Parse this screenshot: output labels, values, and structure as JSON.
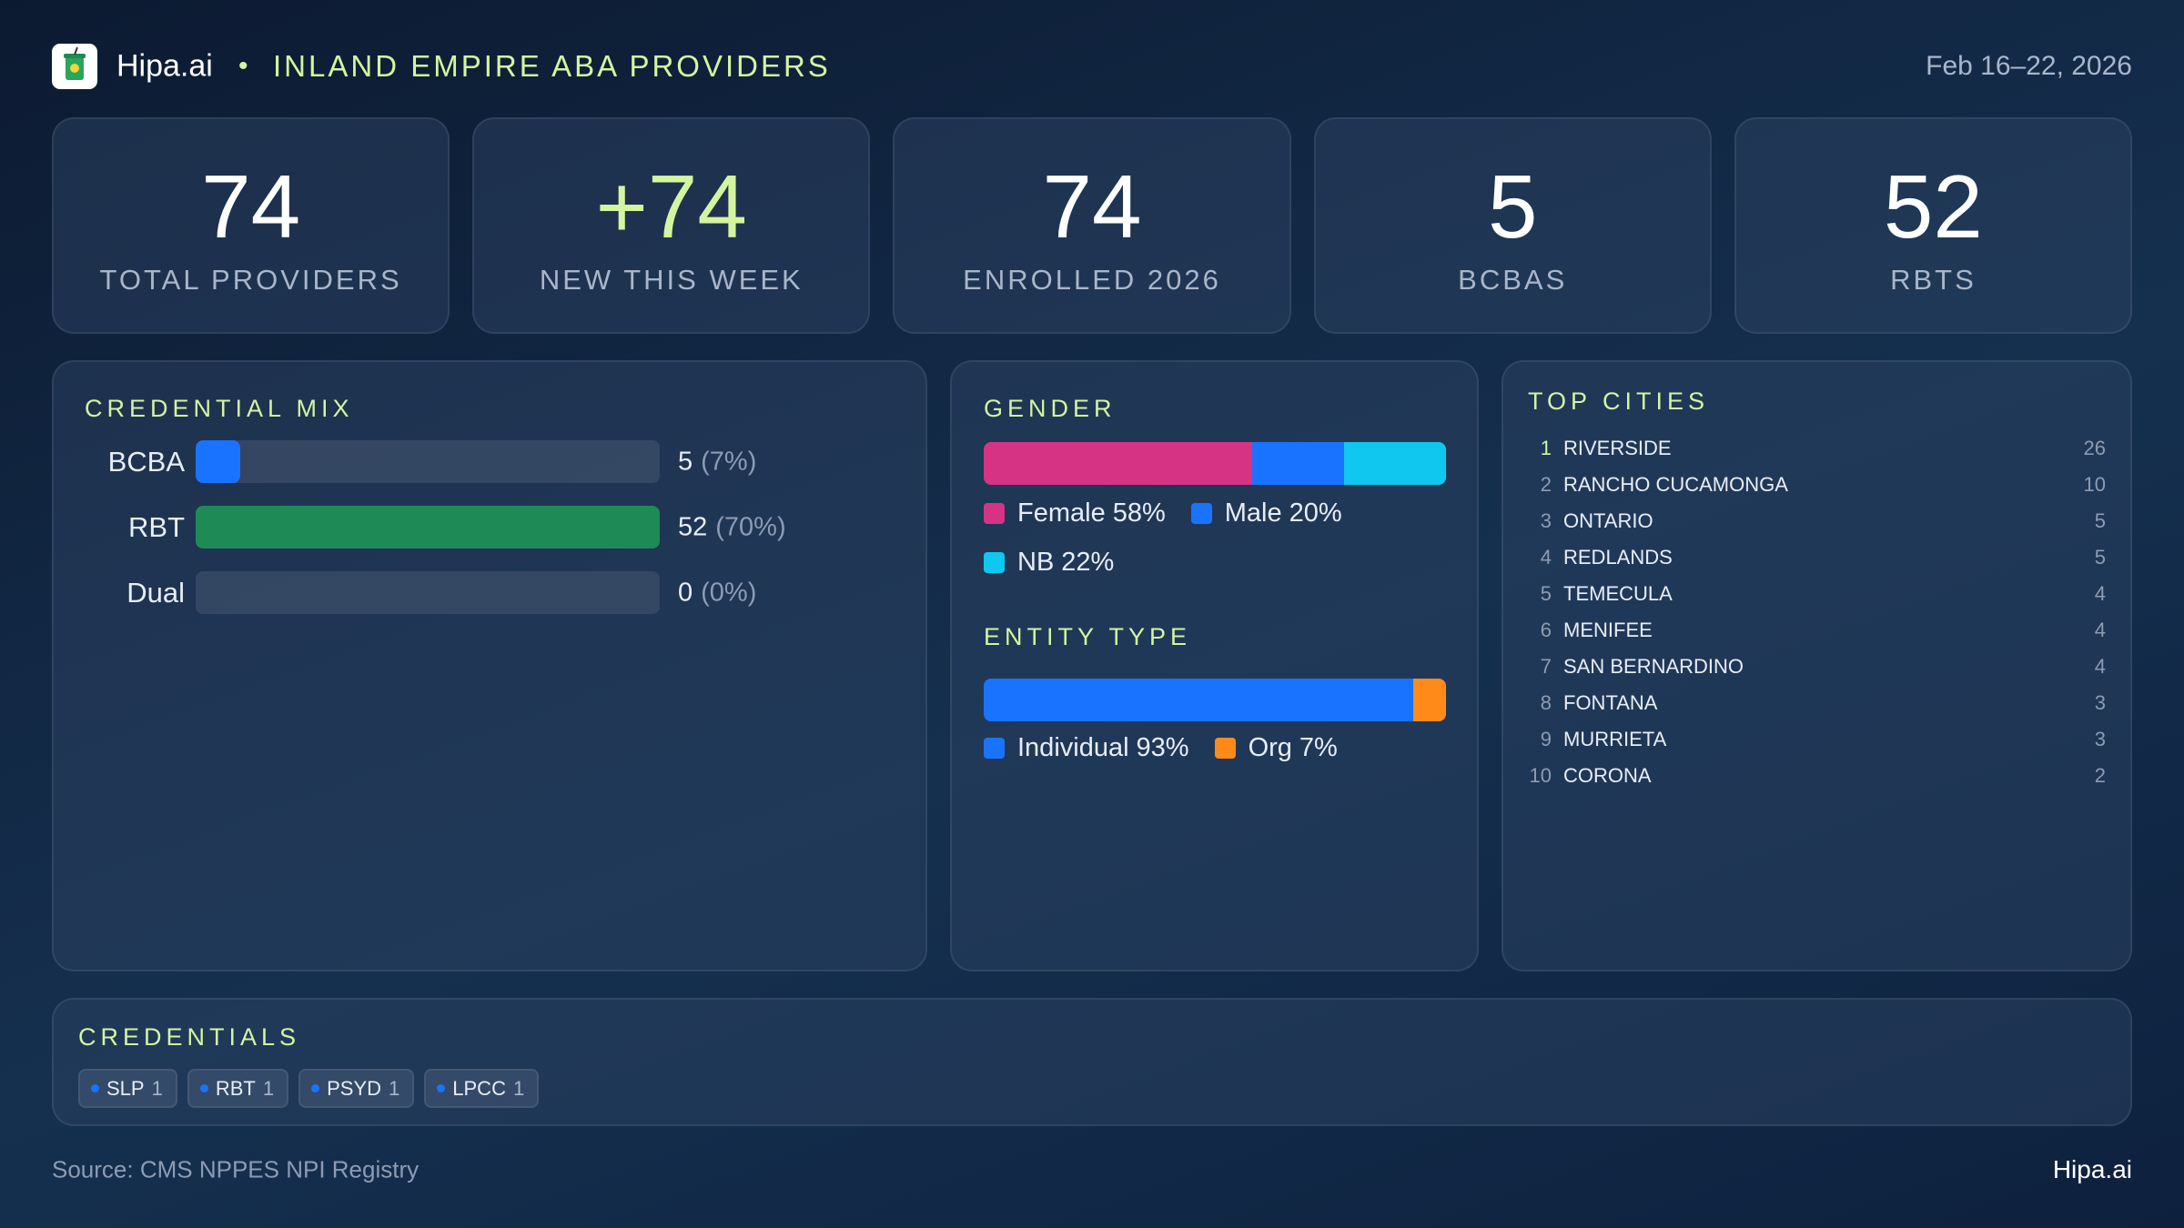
{
  "header": {
    "brand": "Hipa.ai",
    "separator": "•",
    "title": "INLAND EMPIRE ABA PROVIDERS",
    "date": "Feb 16–22, 2026"
  },
  "kpis": [
    {
      "value": 74,
      "label": "TOTAL PROVIDERS",
      "color": "#ffffff"
    },
    {
      "value": "+74",
      "label": "NEW THIS WEEK",
      "color": "#d4f5a0"
    },
    {
      "value": 74,
      "label": "ENROLLED 2026",
      "color": "#ffffff"
    },
    {
      "value": 5,
      "label": "BCBAS",
      "color": "#ffffff"
    },
    {
      "value": 52,
      "label": "RBTS",
      "color": "#ffffff"
    }
  ],
  "credential_mix": {
    "title": "CREDENTIAL MIX",
    "rows": [
      {
        "label": "BCBA",
        "value": 5,
        "percent_label": "(7%)",
        "color": "#1a73ff"
      },
      {
        "label": "RBT",
        "value": 52,
        "percent_label": "(70%)",
        "color": "#1e8a55"
      },
      {
        "label": "Dual",
        "value": 0,
        "percent_label": "(0%)",
        "color": "#8a6cff"
      }
    ]
  },
  "gender": {
    "title": "GENDER",
    "segments": [
      {
        "name": "Female",
        "value": 58,
        "value_label": "58%",
        "color": "#d63384"
      },
      {
        "name": "Male",
        "value": 20,
        "value_label": "20%",
        "color": "#1a73ff"
      },
      {
        "name": "NB",
        "value": 22,
        "value_label": "22%",
        "color": "#10c8ef"
      }
    ]
  },
  "entity_type": {
    "title": "ENTITY TYPE",
    "segments": [
      {
        "name": "Individual",
        "value": 93,
        "value_label": "93%",
        "color": "#1a73ff"
      },
      {
        "name": "Org",
        "value": 7,
        "value_label": "7%",
        "color": "#ff8a1a"
      }
    ]
  },
  "top_cities": {
    "title": "TOP CITIES",
    "rows": [
      {
        "rank": 1,
        "name": "RIVERSIDE",
        "count": 26
      },
      {
        "rank": 2,
        "name": "RANCHO CUCAMONGA",
        "count": 10
      },
      {
        "rank": 3,
        "name": "ONTARIO",
        "count": 5
      },
      {
        "rank": 4,
        "name": "REDLANDS",
        "count": 5
      },
      {
        "rank": 5,
        "name": "TEMECULA",
        "count": 4
      },
      {
        "rank": 6,
        "name": "MENIFEE",
        "count": 4
      },
      {
        "rank": 7,
        "name": "SAN BERNARDINO",
        "count": 4
      },
      {
        "rank": 8,
        "name": "FONTANA",
        "count": 3
      },
      {
        "rank": 9,
        "name": "MURRIETA",
        "count": 3
      },
      {
        "rank": 10,
        "name": "CORONA",
        "count": 2
      }
    ]
  },
  "credentials": {
    "title": "CREDENTIALS",
    "chips": [
      {
        "name": "SLP",
        "count": 1
      },
      {
        "name": "RBT",
        "count": 1
      },
      {
        "name": "PSYD",
        "count": 1
      },
      {
        "name": "LPCC",
        "count": 1
      }
    ]
  },
  "footer": {
    "source": "Source: CMS NPPES NPI Registry",
    "brand": "Hipa.ai"
  }
}
